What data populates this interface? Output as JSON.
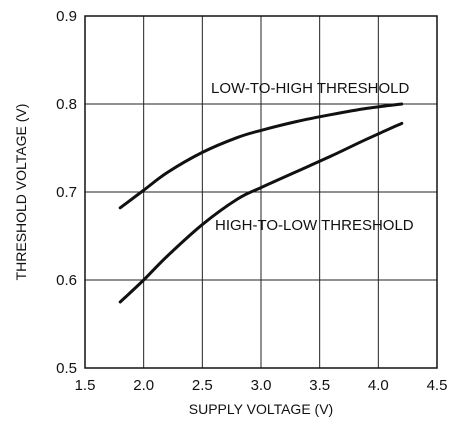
{
  "chart_data": {
    "type": "line",
    "xlabel": "SUPPLY VOLTAGE (V)",
    "ylabel": "THRESHOLD VOLTAGE (V)",
    "xlim": [
      1.5,
      4.5
    ],
    "ylim": [
      0.5,
      0.9
    ],
    "x_ticks": [
      "1.5",
      "2.0",
      "2.5",
      "3.0",
      "3.5",
      "4.0",
      "4.5"
    ],
    "y_ticks": [
      "0.5",
      "0.6",
      "0.7",
      "0.8",
      "0.9"
    ],
    "grid": true,
    "series": [
      {
        "name": "LOW-TO-HIGH THRESHOLD",
        "x": [
          1.8,
          2.0,
          2.2,
          2.5,
          2.8,
          3.0,
          3.3,
          3.6,
          3.9,
          4.2
        ],
        "y": [
          0.682,
          0.702,
          0.722,
          0.745,
          0.762,
          0.77,
          0.78,
          0.788,
          0.795,
          0.8
        ]
      },
      {
        "name": "HIGH-TO-LOW THRESHOLD",
        "x": [
          1.8,
          2.0,
          2.2,
          2.5,
          2.8,
          3.0,
          3.3,
          3.6,
          3.9,
          4.2
        ],
        "y": [
          0.575,
          0.6,
          0.627,
          0.663,
          0.692,
          0.705,
          0.723,
          0.741,
          0.76,
          0.778
        ]
      }
    ]
  }
}
